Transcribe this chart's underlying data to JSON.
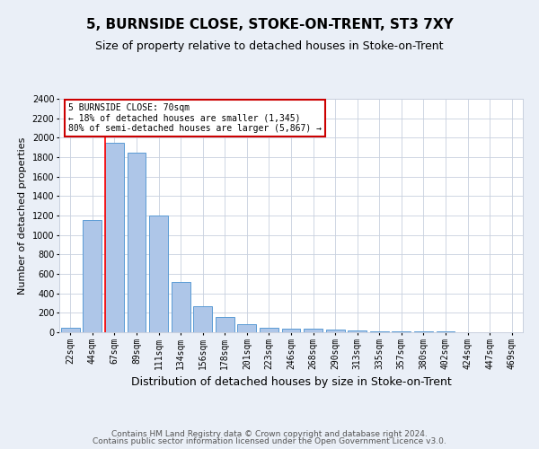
{
  "title": "5, BURNSIDE CLOSE, STOKE-ON-TRENT, ST3 7XY",
  "subtitle": "Size of property relative to detached houses in Stoke-on-Trent",
  "xlabel": "Distribution of detached houses by size in Stoke-on-Trent",
  "ylabel": "Number of detached properties",
  "categories": [
    "22sqm",
    "44sqm",
    "67sqm",
    "89sqm",
    "111sqm",
    "134sqm",
    "156sqm",
    "178sqm",
    "201sqm",
    "223sqm",
    "246sqm",
    "268sqm",
    "290sqm",
    "313sqm",
    "335sqm",
    "357sqm",
    "380sqm",
    "402sqm",
    "424sqm",
    "447sqm",
    "469sqm"
  ],
  "values": [
    50,
    1150,
    1950,
    1850,
    1200,
    520,
    270,
    160,
    80,
    45,
    40,
    35,
    25,
    18,
    13,
    8,
    6,
    5,
    4,
    4,
    2
  ],
  "bar_color": "#aec6e8",
  "bar_edge_color": "#5b9bd5",
  "red_line_index": 2,
  "annotation_line1": "5 BURNSIDE CLOSE: 70sqm",
  "annotation_line2": "← 18% of detached houses are smaller (1,345)",
  "annotation_line3": "80% of semi-detached houses are larger (5,867) →",
  "annotation_box_color": "#ffffff",
  "annotation_box_edge": "#cc0000",
  "ylim": [
    0,
    2400
  ],
  "yticks": [
    0,
    200,
    400,
    600,
    800,
    1000,
    1200,
    1400,
    1600,
    1800,
    2000,
    2200,
    2400
  ],
  "footer_line1": "Contains HM Land Registry data © Crown copyright and database right 2024.",
  "footer_line2": "Contains public sector information licensed under the Open Government Licence v3.0.",
  "bg_color": "#eaeff7",
  "plot_bg_color": "#ffffff",
  "grid_color": "#c8d0de",
  "title_fontsize": 11,
  "subtitle_fontsize": 9,
  "xlabel_fontsize": 9,
  "ylabel_fontsize": 8,
  "tick_fontsize": 7,
  "footer_fontsize": 6.5
}
